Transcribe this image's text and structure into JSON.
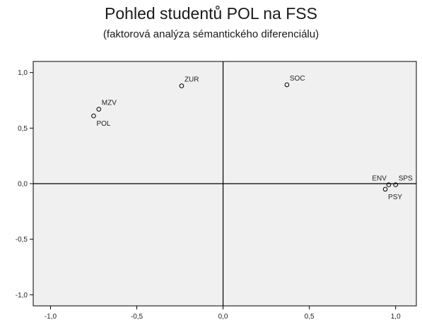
{
  "title": "Pohled studentů POL na FSS",
  "subtitle": "(faktorová analýza sémantického diferenciálu)",
  "chart_data": {
    "type": "scatter",
    "xlim": [
      -1.1,
      1.12
    ],
    "ylim": [
      -1.1,
      1.1
    ],
    "x_ticks": [
      {
        "value": -1.0,
        "label": "-1,0"
      },
      {
        "value": -0.5,
        "label": "-0,5"
      },
      {
        "value": 0.0,
        "label": "0,0"
      },
      {
        "value": 0.5,
        "label": "0,5"
      },
      {
        "value": 1.0,
        "label": "1,0"
      }
    ],
    "y_ticks": [
      {
        "value": 1.0,
        "label": "1,0"
      },
      {
        "value": 0.5,
        "label": "0,5"
      },
      {
        "value": 0.0,
        "label": "0,0"
      },
      {
        "value": -0.5,
        "label": "-0,5"
      },
      {
        "value": -1.0,
        "label": "-1,0"
      }
    ],
    "grid": false,
    "reference_lines": {
      "x": 0,
      "y": 0
    },
    "points": [
      {
        "label": "ZUR",
        "x": -0.24,
        "y": 0.88,
        "label_pos": "above-right"
      },
      {
        "label": "SOC",
        "x": 0.37,
        "y": 0.89,
        "label_pos": "above-right"
      },
      {
        "label": "MZV",
        "x": -0.72,
        "y": 0.67,
        "label_pos": "above-right"
      },
      {
        "label": "POL",
        "x": -0.75,
        "y": 0.61,
        "label_pos": "below-right"
      },
      {
        "label": "ENV",
        "x": 0.96,
        "y": -0.01,
        "label_pos": "above-left"
      },
      {
        "label": "SPS",
        "x": 1.0,
        "y": -0.01,
        "label_pos": "above-right"
      },
      {
        "label": "PSY",
        "x": 0.94,
        "y": -0.05,
        "label_pos": "below-right"
      }
    ],
    "colors": {
      "plot_background": "#f0f0f0",
      "frame": "#000000",
      "axis_lines": "#000000",
      "marker_stroke": "#000000"
    }
  }
}
